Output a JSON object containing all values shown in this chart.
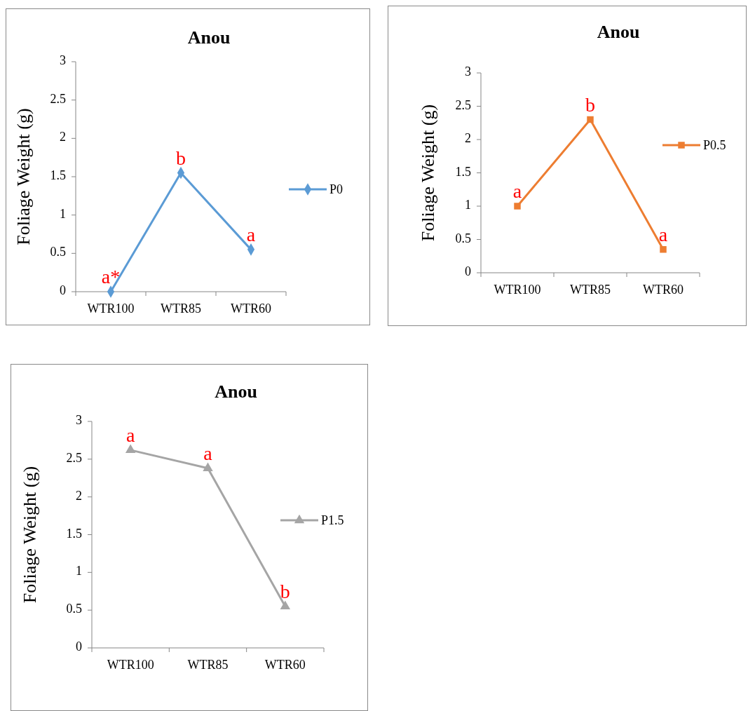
{
  "chart_data": [
    {
      "type": "line",
      "title": "Anou",
      "ylabel": "Foliage Weight (g)",
      "categories": [
        "WTR100",
        "WTR85",
        "WTR60"
      ],
      "ylim": [
        0,
        3
      ],
      "yticks": [
        0,
        0.5,
        1,
        1.5,
        2,
        2.5,
        3
      ],
      "grid": false,
      "legend": "right",
      "marker": "diamond",
      "series": [
        {
          "name": "P0",
          "color": "#5b9bd5",
          "values": [
            0,
            1.55,
            0.55
          ]
        }
      ],
      "annotations": [
        {
          "text": "a*",
          "x": "WTR100",
          "y": 0
        },
        {
          "text": "b",
          "x": "WTR85",
          "y": 1.55
        },
        {
          "text": "a",
          "x": "WTR60",
          "y": 0.55
        }
      ]
    },
    {
      "type": "line",
      "title": "Anou",
      "ylabel": "Foliage Weight (g)",
      "categories": [
        "WTR100",
        "WTR85",
        "WTR60"
      ],
      "ylim": [
        0,
        3
      ],
      "yticks": [
        0,
        0.5,
        1,
        1.5,
        2,
        2.5,
        3
      ],
      "grid": false,
      "legend": "right",
      "marker": "square",
      "series": [
        {
          "name": "P0.5",
          "color": "#ed7d31",
          "values": [
            1.0,
            2.3,
            0.35
          ]
        }
      ],
      "annotations": [
        {
          "text": "a",
          "x": "WTR100",
          "y": 1.0
        },
        {
          "text": "b",
          "x": "WTR85",
          "y": 2.3
        },
        {
          "text": "a",
          "x": "WTR60",
          "y": 0.35
        }
      ]
    },
    {
      "type": "line",
      "title": "Anou",
      "ylabel": "Foliage Weight (g)",
      "categories": [
        "WTR100",
        "WTR85",
        "WTR60"
      ],
      "ylim": [
        0,
        3
      ],
      "yticks": [
        0,
        0.5,
        1,
        1.5,
        2,
        2.5,
        3
      ],
      "grid": false,
      "legend": "right",
      "marker": "triangle",
      "series": [
        {
          "name": "P1.5",
          "color": "#a5a5a5",
          "values": [
            2.62,
            2.38,
            0.55
          ]
        }
      ],
      "annotations": [
        {
          "text": "a",
          "x": "WTR100",
          "y": 2.62
        },
        {
          "text": "a",
          "x": "WTR85",
          "y": 2.38
        },
        {
          "text": "b",
          "x": "WTR60",
          "y": 0.55
        }
      ]
    }
  ]
}
